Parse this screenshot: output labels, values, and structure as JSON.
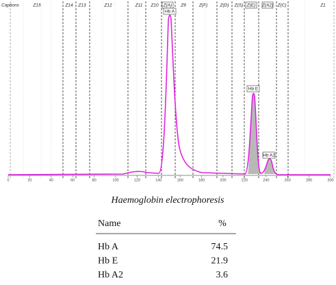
{
  "electropherogram": {
    "zones": [
      "Captions",
      "Z15",
      "Z14",
      "Z13",
      "Z12",
      "Z11",
      "Z10",
      "Z(A)",
      "Z9",
      "Z(F)",
      "Z(D)",
      "Z(S)",
      "Z(E)",
      "Z(A2)",
      "Z(C)",
      "Z1"
    ],
    "peak_labels": [
      "Hb A",
      "Hb E",
      "Hb A2"
    ],
    "xlim": [
      0,
      300
    ],
    "xticks": [
      0,
      20,
      40,
      60,
      80,
      100,
      120,
      140,
      160,
      180,
      200,
      220,
      240,
      260,
      280,
      300
    ]
  },
  "table": {
    "caption": "Haemoglobin electrophoresis",
    "header": [
      "Name",
      "%"
    ],
    "rows": [
      [
        "Hb A",
        74.5
      ],
      [
        "Hb E",
        21.9
      ],
      [
        "Hb A2",
        3.6
      ]
    ]
  }
}
